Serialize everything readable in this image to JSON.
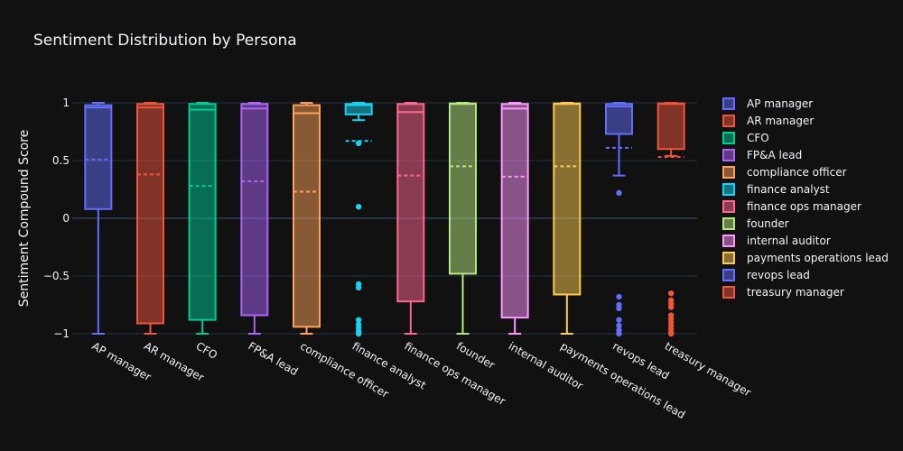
{
  "chart_data": {
    "type": "box",
    "title": "Sentiment Distribution by Persona",
    "xlabel": "",
    "ylabel": "Sentiment Compound Score",
    "ylim": [
      -1.0,
      1.0
    ],
    "yticks": [
      1,
      0.5,
      0,
      -0.5,
      -1
    ],
    "ytick_labels": [
      "1",
      "0.5",
      "0",
      "−0.5",
      "−1"
    ],
    "grid": true,
    "legend_position": "right",
    "categories": [
      "AP manager",
      "AR manager",
      "CFO",
      "FP&A lead",
      "compliance officer",
      "finance analyst",
      "finance ops manager",
      "founder",
      "internal auditor",
      "payments operations lead",
      "revops lead",
      "treasury manager"
    ],
    "series": [
      {
        "name": "AP manager",
        "color": "#636efa",
        "lowerfence": -1.0,
        "q1": 0.08,
        "median": 0.96,
        "q3": 0.98,
        "upperfence": 1.0,
        "mean": 0.51,
        "outliers": []
      },
      {
        "name": "AR manager",
        "color": "#ef553b",
        "lowerfence": -1.0,
        "q1": -0.91,
        "median": 0.96,
        "q3": 0.99,
        "upperfence": 1.0,
        "mean": 0.38,
        "outliers": []
      },
      {
        "name": "CFO",
        "color": "#00cc96",
        "lowerfence": -1.0,
        "q1": -0.88,
        "median": 0.94,
        "q3": 0.99,
        "upperfence": 1.0,
        "mean": 0.28,
        "outliers": []
      },
      {
        "name": "FP&A lead",
        "color": "#ab63fa",
        "lowerfence": -1.0,
        "q1": -0.84,
        "median": 0.95,
        "q3": 0.99,
        "upperfence": 1.0,
        "mean": 0.32,
        "outliers": []
      },
      {
        "name": "compliance officer",
        "color": "#ffa15a",
        "lowerfence": -1.0,
        "q1": -0.94,
        "median": 0.91,
        "q3": 0.98,
        "upperfence": 1.0,
        "mean": 0.23,
        "outliers": []
      },
      {
        "name": "finance analyst",
        "color": "#19d3f3",
        "lowerfence": 0.85,
        "q1": 0.9,
        "median": 0.98,
        "q3": 0.99,
        "upperfence": 1.0,
        "mean": 0.67,
        "outliers": [
          0.65,
          0.1,
          -0.57,
          -0.6,
          -0.88,
          -0.92,
          -0.95,
          -0.98,
          -1.0
        ]
      },
      {
        "name": "finance ops manager",
        "color": "#ff6692",
        "lowerfence": -1.0,
        "q1": -0.72,
        "median": 0.92,
        "q3": 0.99,
        "upperfence": 1.0,
        "mean": 0.37,
        "outliers": []
      },
      {
        "name": "founder",
        "color": "#b6e880",
        "lowerfence": -1.0,
        "q1": -0.48,
        "median": 0.99,
        "q3": 0.995,
        "upperfence": 1.0,
        "mean": 0.45,
        "outliers": []
      },
      {
        "name": "internal auditor",
        "color": "#ff97ff",
        "lowerfence": -1.0,
        "q1": -0.86,
        "median": 0.95,
        "q3": 0.99,
        "upperfence": 1.0,
        "mean": 0.36,
        "outliers": []
      },
      {
        "name": "payments operations lead",
        "color": "#fecb52",
        "lowerfence": -1.0,
        "q1": -0.66,
        "median": 0.99,
        "q3": 0.995,
        "upperfence": 1.0,
        "mean": 0.45,
        "outliers": []
      },
      {
        "name": "revops lead",
        "color": "#636efa",
        "lowerfence": 0.37,
        "q1": 0.73,
        "median": 0.97,
        "q3": 0.99,
        "upperfence": 1.0,
        "mean": 0.61,
        "outliers": [
          0.22,
          -0.68,
          -0.75,
          -0.78,
          -0.88,
          -0.93,
          -0.97,
          -1.0
        ]
      },
      {
        "name": "treasury manager",
        "color": "#ef553b",
        "lowerfence": 0.54,
        "q1": 0.6,
        "median": 0.99,
        "q3": 0.995,
        "upperfence": 1.0,
        "mean": 0.53,
        "outliers": [
          -0.65,
          -0.71,
          -0.74,
          -0.77,
          -0.84,
          -0.87,
          -0.9,
          -0.93,
          -0.96,
          -0.99,
          -1.0
        ]
      }
    ]
  }
}
